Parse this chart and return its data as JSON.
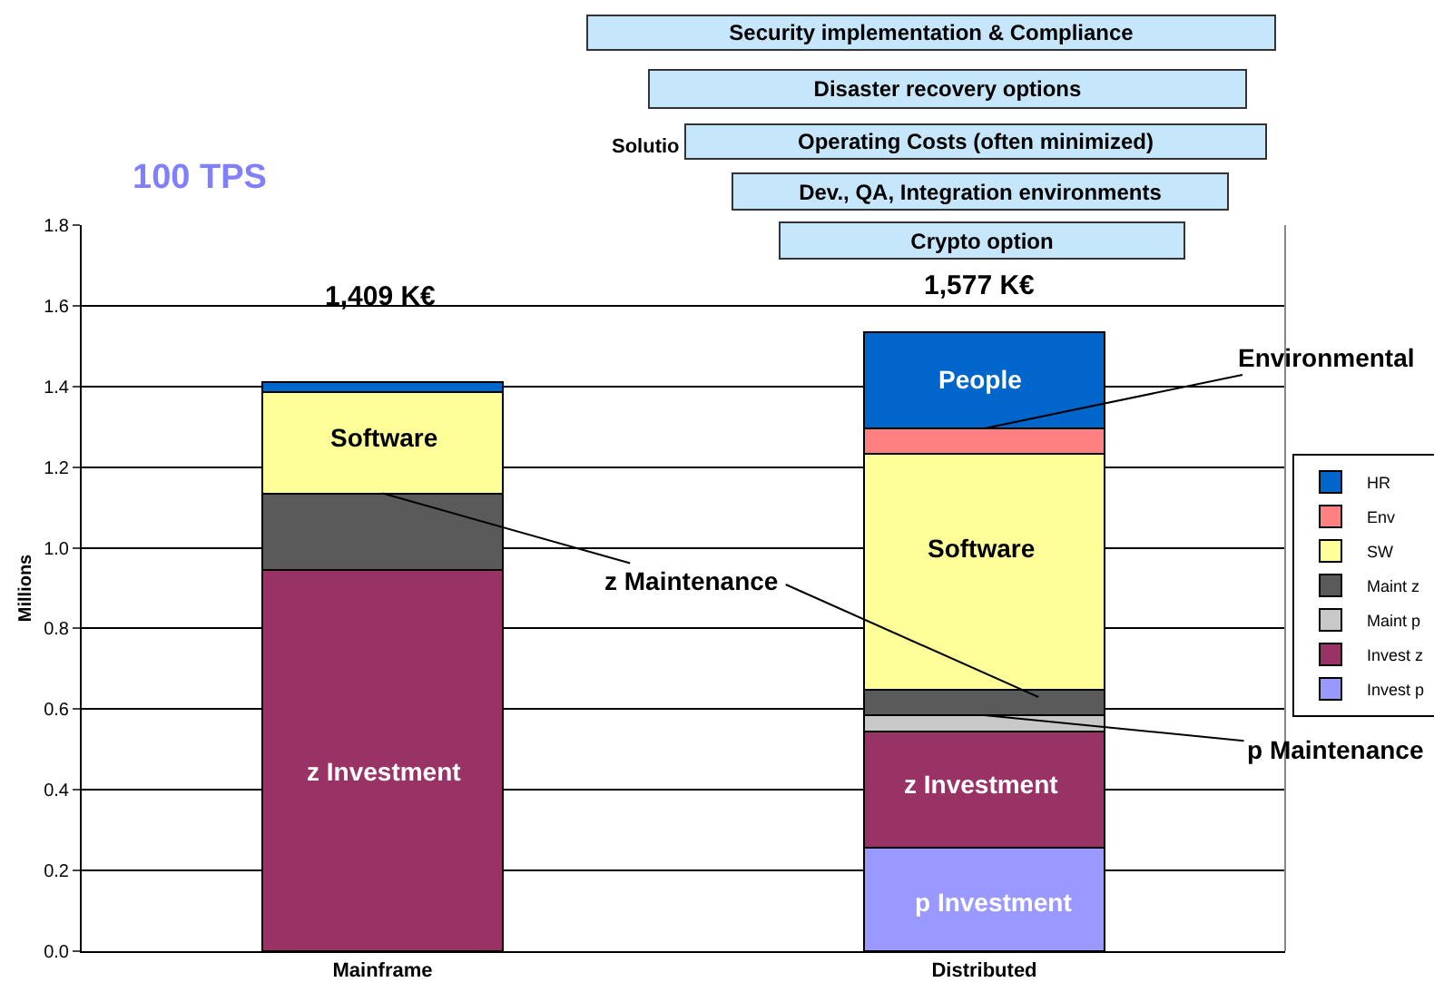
{
  "chart_data": {
    "type": "bar",
    "title": "100 TPS",
    "ylabel": "Millions",
    "categories": [
      "Mainframe",
      "Distributed"
    ],
    "stacked": true,
    "series": [
      {
        "name": "Invest p",
        "color": "#9999ff",
        "values": [
          0,
          0.257
        ]
      },
      {
        "name": "Invest z",
        "color": "#993366",
        "values": [
          0.945,
          0.288
        ]
      },
      {
        "name": "Maint p",
        "color": "#c8c8c8",
        "values": [
          0,
          0.04
        ]
      },
      {
        "name": "Maint z",
        "color": "#5a5a5a",
        "values": [
          0.19,
          0.063
        ]
      },
      {
        "name": "SW",
        "color": "#ffff99",
        "values": [
          0.252,
          0.585
        ]
      },
      {
        "name": "Env",
        "color": "#ff8080",
        "values": [
          0,
          0.063
        ]
      },
      {
        "name": "HR",
        "color": "#0066cc",
        "values": [
          0.023,
          0.239
        ]
      }
    ],
    "ylim": [
      0,
      1.8
    ],
    "yticks": [
      {
        "value": 0,
        "label": "0.0"
      },
      {
        "value": 0.2,
        "label": "0.2"
      },
      {
        "value": 0.4,
        "label": "0.4"
      },
      {
        "value": 0.6,
        "label": "0.6"
      },
      {
        "value": 0.8,
        "label": "0.8"
      },
      {
        "value": 1,
        "label": "1.0"
      },
      {
        "value": 1.2,
        "label": "1.2"
      },
      {
        "value": 1.4,
        "label": "1.4"
      },
      {
        "value": 1.6,
        "label": "1.6"
      },
      {
        "value": 1.8,
        "label": "1.8"
      }
    ],
    "grid": "y",
    "legend": "right",
    "annotations": [
      "Solutio",
      "Security implementation & Compliance",
      "Disaster recovery options",
      "Operating Costs (often minimized)",
      "Dev., QA, Integration environments",
      "Crypto option",
      "Software",
      "z Investment",
      "People",
      "Software",
      "z Investment",
      "p Investment",
      {
        "text": "Environmental",
        "x": "Distributed",
        "y": 1.296
      },
      {
        "text": "z Maintenance",
        "x": "Mainframe",
        "y": 1.135
      },
      {
        "text": "p Maintenance",
        "x": "Distributed",
        "y": 0.585
      },
      "1,409 K€",
      "1,577 K€"
    ]
  }
}
